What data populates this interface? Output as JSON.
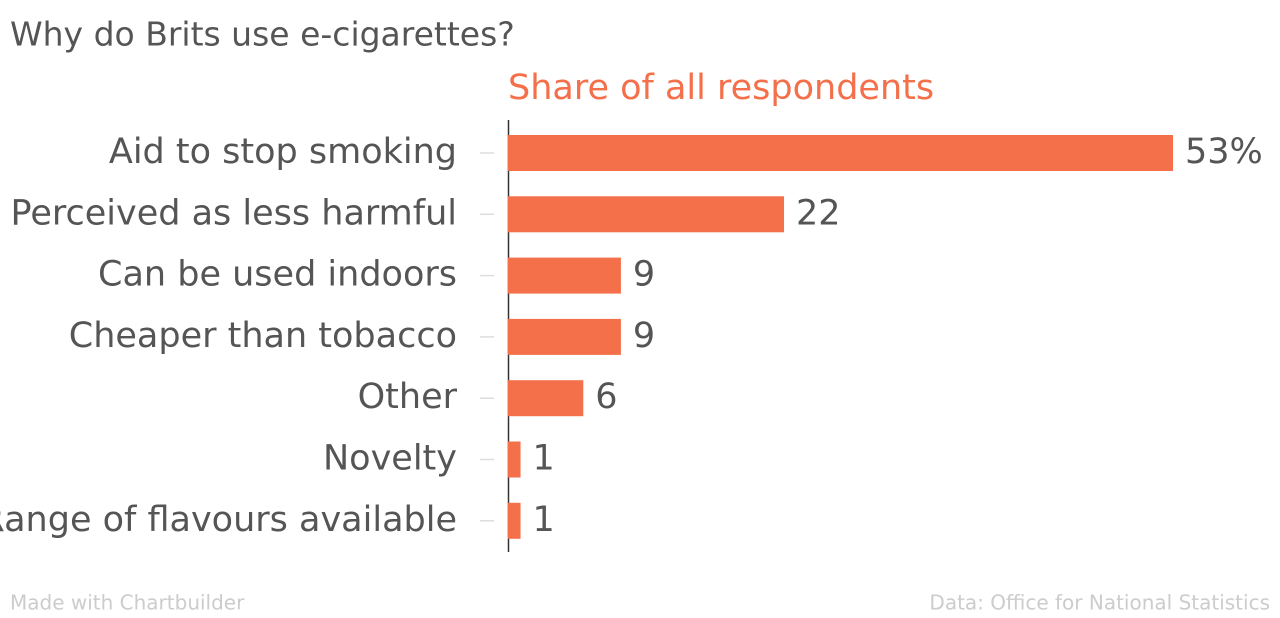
{
  "chart_data": {
    "type": "bar",
    "orientation": "horizontal",
    "title": "Why do Brits use e-cigarettes?",
    "subtitle": "Share of all respondents",
    "categories": [
      "Aid to stop smoking",
      "Perceived as less harmful",
      "Can be used indoors",
      "Cheaper than tobacco",
      "Other",
      "Novelty",
      "Range of flavours available"
    ],
    "values": [
      53,
      22,
      9,
      9,
      6,
      1,
      1
    ],
    "value_labels": [
      "53%",
      "22",
      "9",
      "9",
      "6",
      "1",
      "1"
    ],
    "color": "#f4704a",
    "credit": "Made with Chartbuilder",
    "source": "Data: Office for National Statistics"
  }
}
